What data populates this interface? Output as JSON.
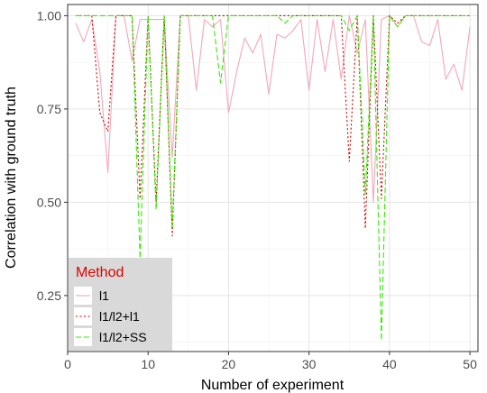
{
  "chart_data": {
    "type": "line",
    "xlabel": "Number of experiment",
    "ylabel": "Correlation with ground truth",
    "xlim": [
      0,
      51
    ],
    "ylim": [
      0.1,
      1.03
    ],
    "x_ticks": [
      0,
      10,
      20,
      30,
      40,
      50
    ],
    "y_ticks": [
      0.25,
      0.5,
      0.75,
      1.0
    ],
    "x_tick_labels": [
      "0",
      "10",
      "20",
      "30",
      "40",
      "50"
    ],
    "y_tick_labels": [
      "0.25",
      "0.50",
      "0.75",
      "1.00"
    ],
    "grid": true,
    "legend": {
      "title": "Method",
      "title_color": "#e00000",
      "placement": "bottom-left"
    },
    "x": [
      1,
      2,
      3,
      4,
      5,
      6,
      7,
      8,
      9,
      10,
      11,
      12,
      13,
      14,
      15,
      16,
      17,
      18,
      19,
      20,
      21,
      22,
      23,
      24,
      25,
      26,
      27,
      28,
      29,
      30,
      31,
      32,
      33,
      34,
      35,
      36,
      37,
      38,
      39,
      40,
      41,
      42,
      43,
      44,
      45,
      46,
      47,
      48,
      49,
      50
    ],
    "series": [
      {
        "name": "l1",
        "color": "#f4a7b9",
        "dash": "solid",
        "values": [
          0.98,
          0.93,
          0.99,
          0.85,
          0.58,
          1.0,
          1.0,
          0.88,
          0.99,
          0.99,
          0.99,
          0.99,
          0.62,
          1.0,
          1.0,
          0.8,
          0.99,
          0.97,
          0.99,
          0.74,
          0.85,
          0.94,
          0.9,
          0.95,
          0.79,
          0.95,
          0.94,
          0.96,
          0.99,
          0.8,
          0.99,
          0.85,
          0.99,
          0.83,
          1.0,
          0.9,
          0.99,
          0.5,
          0.99,
          1.0,
          0.97,
          1.0,
          1.0,
          0.93,
          0.92,
          0.99,
          0.83,
          0.87,
          0.8,
          0.97
        ]
      },
      {
        "name": "l1/l2+l1",
        "color": "#cc0000",
        "dash": "dotted",
        "values": [
          1.0,
          1.0,
          1.0,
          0.74,
          0.69,
          1.0,
          1.0,
          1.0,
          0.51,
          1.0,
          0.5,
          1.0,
          0.41,
          1.0,
          1.0,
          1.0,
          1.0,
          1.0,
          1.0,
          1.0,
          1.0,
          1.0,
          1.0,
          1.0,
          1.0,
          1.0,
          1.0,
          1.0,
          1.0,
          1.0,
          1.0,
          1.0,
          1.0,
          1.0,
          0.61,
          1.0,
          0.43,
          1.0,
          0.51,
          1.0,
          0.98,
          1.0,
          1.0,
          1.0,
          1.0,
          1.0,
          1.0,
          1.0,
          1.0,
          1.0
        ]
      },
      {
        "name": "l1/l2+SS",
        "color": "#33ee00",
        "dash": "dashed",
        "values": [
          1.0,
          1.0,
          1.0,
          1.0,
          1.0,
          1.0,
          1.0,
          1.0,
          0.35,
          1.0,
          0.48,
          1.0,
          0.43,
          1.0,
          1.0,
          1.0,
          1.0,
          1.0,
          0.82,
          1.0,
          1.0,
          1.0,
          1.0,
          1.0,
          1.0,
          1.0,
          0.98,
          1.0,
          1.0,
          1.0,
          1.0,
          1.0,
          1.0,
          1.0,
          0.96,
          1.0,
          0.52,
          1.0,
          0.13,
          1.0,
          0.97,
          1.0,
          1.0,
          1.0,
          1.0,
          1.0,
          1.0,
          1.0,
          1.0,
          1.0
        ]
      }
    ]
  }
}
